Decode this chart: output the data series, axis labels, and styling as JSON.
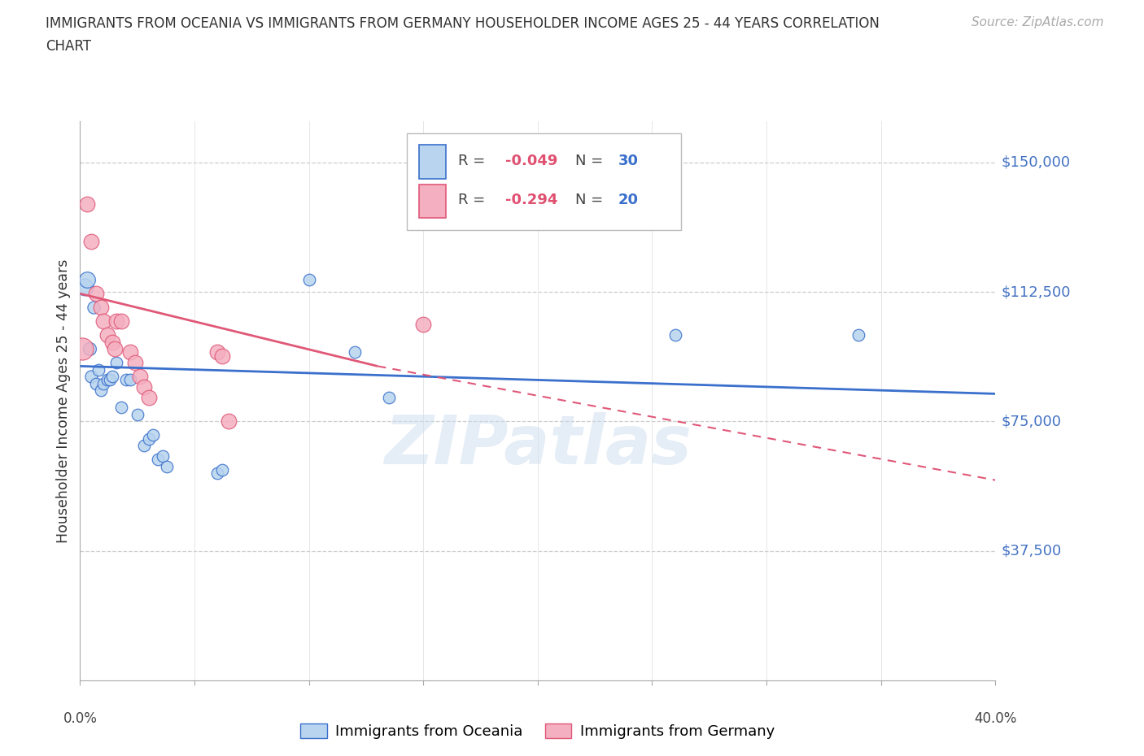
{
  "title_line1": "IMMIGRANTS FROM OCEANIA VS IMMIGRANTS FROM GERMANY HOUSEHOLDER INCOME AGES 25 - 44 YEARS CORRELATION",
  "title_line2": "CHART",
  "source": "Source: ZipAtlas.com",
  "ylabel": "Householder Income Ages 25 - 44 years",
  "xlim": [
    0.0,
    0.4
  ],
  "ylim": [
    0,
    162000
  ],
  "yticks": [
    37500,
    75000,
    112500,
    150000
  ],
  "ytick_labels": [
    "$37,500",
    "$75,000",
    "$112,500",
    "$150,000"
  ],
  "oceania_color": "#b8d4ee",
  "germany_color": "#f4afc0",
  "line_oceania_color": "#3a70cc",
  "line_germany_color": "#e05878",
  "watermark": "ZIPatlas",
  "oceania_R": "-0.049",
  "oceania_N": "30",
  "germany_R": "-0.294",
  "germany_N": "20",
  "oceania_points": [
    [
      0.002,
      114000,
      220
    ],
    [
      0.003,
      116000,
      200
    ],
    [
      0.004,
      96000,
      130
    ],
    [
      0.005,
      88000,
      120
    ],
    [
      0.006,
      108000,
      120
    ],
    [
      0.007,
      86000,
      110
    ],
    [
      0.008,
      90000,
      110
    ],
    [
      0.009,
      84000,
      110
    ],
    [
      0.01,
      86000,
      110
    ],
    [
      0.012,
      87000,
      110
    ],
    [
      0.013,
      87000,
      110
    ],
    [
      0.014,
      88000,
      110
    ],
    [
      0.016,
      92000,
      110
    ],
    [
      0.018,
      79000,
      110
    ],
    [
      0.02,
      87000,
      110
    ],
    [
      0.022,
      87000,
      110
    ],
    [
      0.025,
      77000,
      110
    ],
    [
      0.028,
      68000,
      110
    ],
    [
      0.03,
      70000,
      110
    ],
    [
      0.032,
      71000,
      110
    ],
    [
      0.034,
      64000,
      110
    ],
    [
      0.036,
      65000,
      110
    ],
    [
      0.038,
      62000,
      110
    ],
    [
      0.06,
      60000,
      110
    ],
    [
      0.062,
      61000,
      110
    ],
    [
      0.1,
      116000,
      110
    ],
    [
      0.12,
      95000,
      110
    ],
    [
      0.135,
      82000,
      110
    ],
    [
      0.26,
      100000,
      110
    ],
    [
      0.34,
      100000,
      110
    ]
  ],
  "germany_points": [
    [
      0.001,
      96000,
      380
    ],
    [
      0.003,
      138000,
      180
    ],
    [
      0.005,
      127000,
      180
    ],
    [
      0.007,
      112000,
      180
    ],
    [
      0.009,
      108000,
      180
    ],
    [
      0.01,
      104000,
      180
    ],
    [
      0.012,
      100000,
      180
    ],
    [
      0.014,
      98000,
      180
    ],
    [
      0.015,
      96000,
      180
    ],
    [
      0.016,
      104000,
      180
    ],
    [
      0.018,
      104000,
      180
    ],
    [
      0.022,
      95000,
      180
    ],
    [
      0.024,
      92000,
      180
    ],
    [
      0.026,
      88000,
      180
    ],
    [
      0.028,
      85000,
      180
    ],
    [
      0.03,
      82000,
      180
    ],
    [
      0.06,
      95000,
      180
    ],
    [
      0.062,
      94000,
      180
    ],
    [
      0.065,
      75000,
      180
    ],
    [
      0.15,
      103000,
      180
    ]
  ],
  "oceania_trend": [
    0.0,
    91000,
    0.4,
    83000
  ],
  "germany_trend_solid": [
    0.0,
    112000,
    0.13,
    91000
  ],
  "germany_trend_dashed": [
    0.0,
    112000,
    0.4,
    58000
  ],
  "xtick_positions": [
    0.0,
    0.05,
    0.1,
    0.15,
    0.2,
    0.25,
    0.3,
    0.35,
    0.4
  ]
}
